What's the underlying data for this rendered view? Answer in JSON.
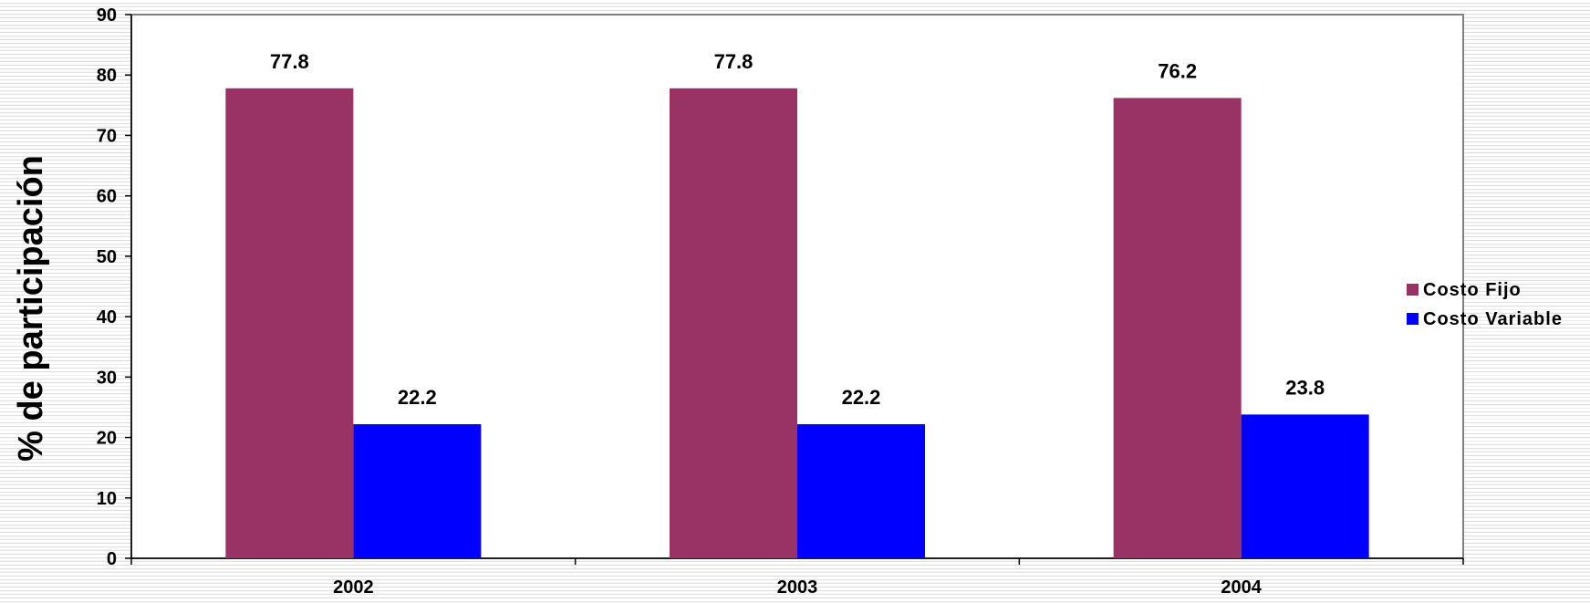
{
  "chart_data": {
    "type": "bar",
    "categories": [
      "2002",
      "2003",
      "2004"
    ],
    "series": [
      {
        "name": "Costo Fijo",
        "values": [
          77.8,
          77.8,
          76.2
        ],
        "labels": [
          "77.8",
          "77.8",
          "76.2"
        ],
        "color": "#993366"
      },
      {
        "name": "Costo Variable",
        "values": [
          22.2,
          22.2,
          23.8
        ],
        "labels": [
          "22.2",
          "22.2",
          "23.8"
        ],
        "color": "#0000ff"
      }
    ],
    "ylabel": "% de participación",
    "xlabel": "",
    "ylim": [
      0,
      90
    ],
    "yticks": [
      0,
      10,
      20,
      30,
      40,
      50,
      60,
      70,
      80,
      90
    ],
    "legend_position": "right",
    "grid": false
  }
}
